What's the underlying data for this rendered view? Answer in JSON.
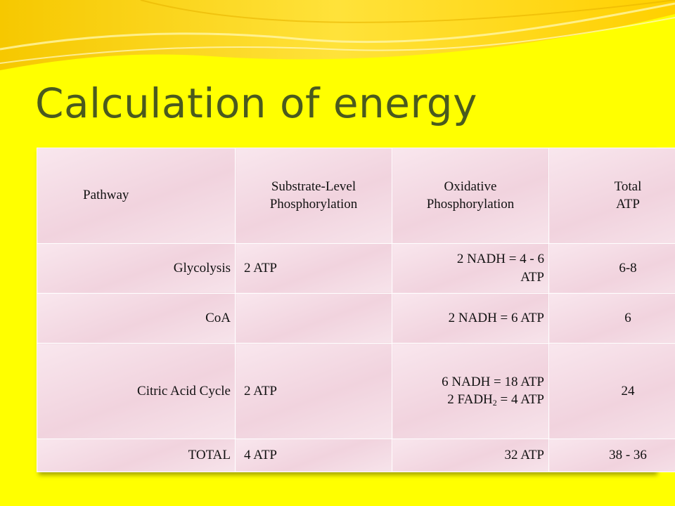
{
  "slide": {
    "title": "Calculation of energy"
  },
  "table": {
    "headers": {
      "pathway": "Pathway",
      "substrate_line1": "Substrate-Level",
      "substrate_line2": "Phosphorylation",
      "oxidative_line1": "Oxidative",
      "oxidative_line2": "Phosphorylation",
      "total_line1": "Total",
      "total_line2": "ATP"
    },
    "rows": [
      {
        "pathway": "Glycolysis",
        "substrate": "2 ATP",
        "oxidative_line1": "2 NADH = 4 - 6",
        "oxidative_line2": "ATP",
        "total": "6-8"
      },
      {
        "pathway": "CoA",
        "substrate": "",
        "oxidative_line1": "2 NADH = 6 ATP",
        "total": "6"
      },
      {
        "pathway": "Citric Acid Cycle",
        "substrate": "2 ATP",
        "oxidative_line1": "6 NADH = 18 ATP",
        "oxidative_line2a": "2 FADH",
        "oxidative_line2_sub": "2",
        "oxidative_line2b": " = 4 ATP",
        "total": "24"
      },
      {
        "pathway": "TOTAL",
        "substrate": "4 ATP",
        "oxidative_line1": "32 ATP",
        "total": "38 - 36"
      }
    ]
  }
}
